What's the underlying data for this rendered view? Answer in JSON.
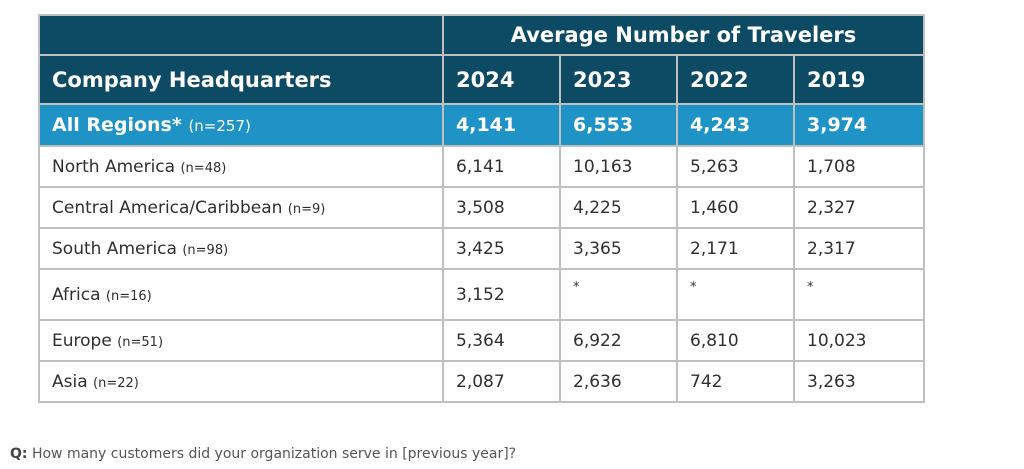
{
  "table": {
    "group_header": "Average Number of Travelers",
    "col0_header": "Company Headquarters",
    "years": [
      "2024",
      "2023",
      "2022",
      "2019"
    ],
    "all_regions": {
      "label": "All Regions*",
      "n": "(n=257)",
      "values": [
        "4,141",
        "6,553",
        "4,243",
        "3,974"
      ]
    },
    "rows": [
      {
        "label": "North America",
        "n": "(n=48)",
        "values": [
          "6,141",
          "10,163",
          "5,263",
          "1,708"
        ]
      },
      {
        "label": "Central America/Caribbean",
        "n": "(n=9)",
        "values": [
          "3,508",
          "4,225",
          "1,460",
          "2,327"
        ]
      },
      {
        "label": "South America",
        "n": "(n=98)",
        "values": [
          "3,425",
          "3,365",
          "2,171",
          "2,317"
        ]
      },
      {
        "label": "Africa",
        "n": "(n=16)",
        "values": [
          "3,152",
          "*",
          "*",
          "*"
        ]
      },
      {
        "label": "Europe",
        "n": "(n=51)",
        "values": [
          "5,364",
          "6,922",
          "6,810",
          "10,023"
        ]
      },
      {
        "label": "Asia",
        "n": "(n=22)",
        "values": [
          "2,087",
          "2,636",
          "742",
          "3,263"
        ]
      }
    ]
  },
  "footer": {
    "q_label": "Q:",
    "question": "How many customers did your organization serve in [previous year]?"
  },
  "colors": {
    "header_bg": "#0d4a64",
    "all_regions_bg": "#1f93c5",
    "border": "#bfbfbf"
  }
}
